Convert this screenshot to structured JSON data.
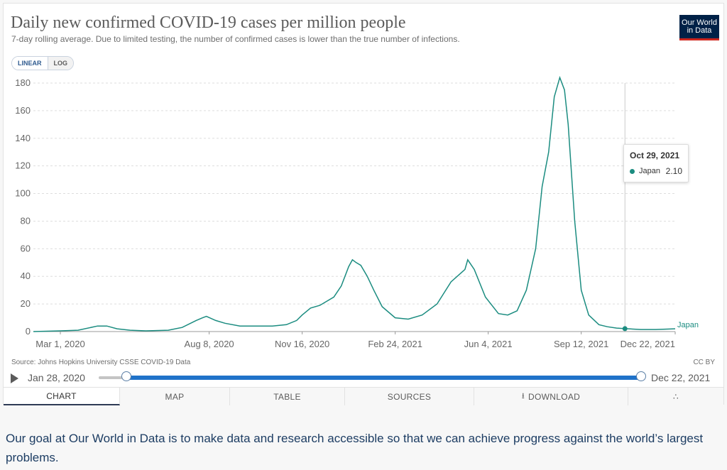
{
  "header": {
    "title": "Daily new confirmed COVID-19 cases per million people",
    "subtitle": "7-day rolling average. Due to limited testing, the number of confirmed cases is lower than the true number of infections.",
    "logo_line1": "Our World",
    "logo_line2": "in Data"
  },
  "scale_toggle": {
    "linear": "LINEAR",
    "log": "LOG",
    "active": "linear"
  },
  "tooltip": {
    "date": "Oct 29, 2021",
    "entity": "Japan",
    "value": "2.10"
  },
  "source": "Source: Johns Hopkins University CSSE COVID-19 Data",
  "license": "CC BY",
  "timeline": {
    "start": "Jan 28, 2020",
    "end": "Dec 22, 2021"
  },
  "tabs": {
    "chart": "CHART",
    "map": "MAP",
    "table": "TABLE",
    "sources": "SOURCES",
    "download": "DOWNLOAD"
  },
  "footer": "Our goal at Our World in Data is to make data and research accessible so that we can achieve progress against the world’s largest problems.",
  "colors": {
    "series": "#1b8c80",
    "brand": "#002147",
    "accent": "#ce261e",
    "slider": "#1f72c9"
  },
  "icons": {
    "play": "play-icon",
    "download": "download-icon",
    "share": "share-icon"
  },
  "chart_data": {
    "type": "line",
    "title": "Daily new confirmed COVID-19 cases per million people",
    "subtitle": "7-day rolling average. Due to limited testing, the number of confirmed cases is lower than the true number of infections.",
    "xlabel": "",
    "ylabel": "",
    "ylim": [
      0,
      180
    ],
    "yticks": [
      0,
      20,
      40,
      60,
      80,
      100,
      120,
      140,
      160,
      180
    ],
    "xticks": [
      "Mar 1, 2020",
      "Aug 8, 2020",
      "Nov 16, 2020",
      "Feb 24, 2021",
      "Jun 4, 2021",
      "Sep 12, 2021",
      "Dec 22, 2021"
    ],
    "xlim": [
      "2020-02-01",
      "2021-12-22"
    ],
    "grid": "horizontal",
    "scale": "linear",
    "series": [
      {
        "name": "Japan",
        "x": [
          "2020-02-01",
          "2020-03-01",
          "2020-03-20",
          "2020-04-10",
          "2020-04-20",
          "2020-05-01",
          "2020-05-15",
          "2020-06-01",
          "2020-06-25",
          "2020-07-10",
          "2020-07-25",
          "2020-08-01",
          "2020-08-05",
          "2020-08-15",
          "2020-08-25",
          "2020-09-10",
          "2020-09-25",
          "2020-10-15",
          "2020-10-30",
          "2020-11-10",
          "2020-11-16",
          "2020-11-25",
          "2020-12-05",
          "2020-12-20",
          "2020-12-28",
          "2021-01-05",
          "2021-01-09",
          "2021-01-13",
          "2021-01-18",
          "2021-01-25",
          "2021-02-01",
          "2021-02-10",
          "2021-02-24",
          "2021-03-10",
          "2021-03-25",
          "2021-04-10",
          "2021-04-25",
          "2021-05-05",
          "2021-05-10",
          "2021-05-13",
          "2021-05-20",
          "2021-06-01",
          "2021-06-15",
          "2021-06-25",
          "2021-07-05",
          "2021-07-15",
          "2021-07-25",
          "2021-08-01",
          "2021-08-08",
          "2021-08-14",
          "2021-08-20",
          "2021-08-25",
          "2021-08-29",
          "2021-09-05",
          "2021-09-12",
          "2021-09-20",
          "2021-10-01",
          "2021-10-10",
          "2021-10-20",
          "2021-10-29",
          "2021-11-15",
          "2021-12-01",
          "2021-12-22"
        ],
        "values": [
          0,
          0.5,
          1,
          4,
          4,
          2,
          1,
          0.5,
          1,
          3,
          8,
          10,
          11,
          8,
          6,
          4,
          4,
          4,
          5,
          8,
          12,
          17,
          19,
          25,
          33,
          47,
          52,
          50,
          48,
          40,
          30,
          18,
          10,
          9,
          12,
          20,
          36,
          42,
          45,
          52,
          45,
          25,
          13,
          12,
          15,
          30,
          60,
          105,
          130,
          170,
          184,
          175,
          150,
          80,
          30,
          12,
          5,
          3.5,
          2.5,
          2.1,
          1.5,
          1.5,
          2
        ]
      }
    ],
    "annotations": [
      {
        "text": "Japan",
        "type": "series-label"
      }
    ]
  }
}
